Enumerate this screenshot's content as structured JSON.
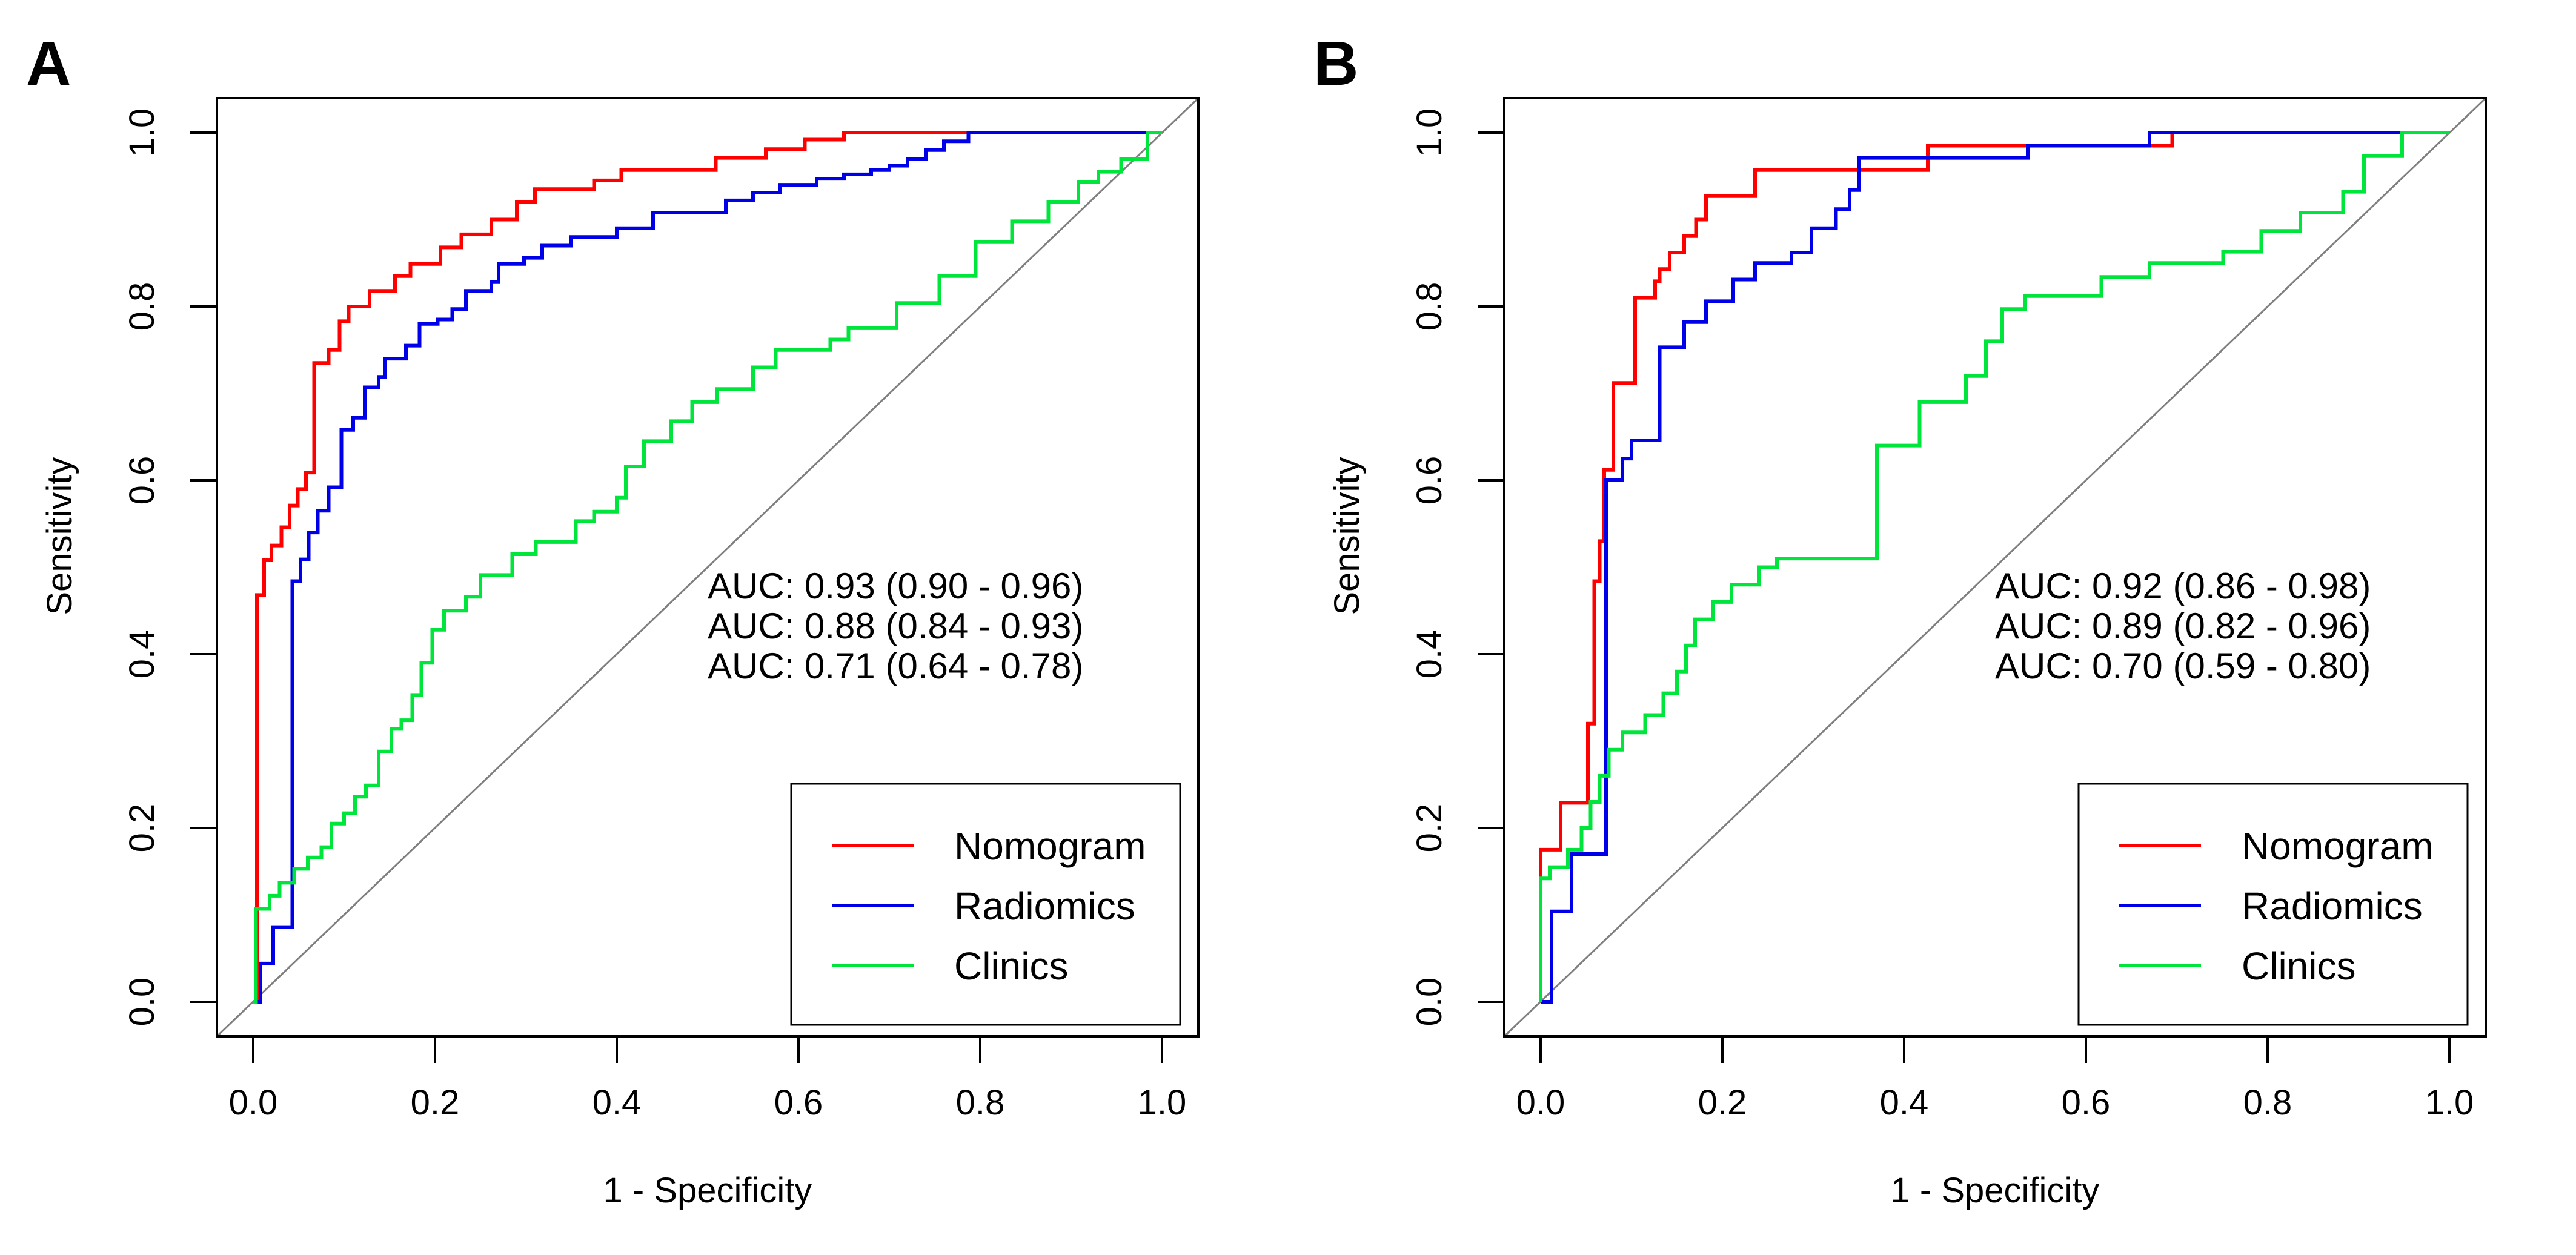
{
  "figure": {
    "background": "#ffffff",
    "axis_color": "#000000",
    "diagonal_color": "#7f7f7f"
  },
  "chart_data": [
    {
      "type": "line",
      "subtype": "roc-step-curves",
      "panel_label": "A",
      "xlabel": "1 - Specificity",
      "ylabel": "Sensitivity",
      "x_ticks": [
        "0.0",
        "0.2",
        "0.4",
        "0.6",
        "0.8",
        "1.0"
      ],
      "y_ticks": [
        "0.0",
        "0.2",
        "0.4",
        "0.6",
        "0.8",
        "1.0"
      ],
      "xlim": [
        0,
        1
      ],
      "ylim": [
        0,
        1
      ],
      "grid": false,
      "diagonal_reference_line": true,
      "legend_position": "bottom-right",
      "auc_annotations": [
        {
          "label": "AUC: 0.93 (0.90 - 0.96)",
          "series": "Nomogram",
          "auc": 0.93,
          "ci_low": 0.9,
          "ci_high": 0.96,
          "color": "#ff0000"
        },
        {
          "label": "AUC: 0.88 (0.84 - 0.93)",
          "series": "Radiomics",
          "auc": 0.88,
          "ci_low": 0.84,
          "ci_high": 0.93,
          "color": "#0000e8"
        },
        {
          "label": "AUC: 0.71 (0.64 - 0.78)",
          "series": "Clinics",
          "auc": 0.71,
          "ci_low": 0.64,
          "ci_high": 0.78,
          "color": "#00e53c"
        }
      ],
      "legend": [
        {
          "label": "Nomogram",
          "color": "#ff0000"
        },
        {
          "label": "Radiomics",
          "color": "#0000e8"
        },
        {
          "label": "Clinics",
          "color": "#00e53c"
        }
      ],
      "series": [
        {
          "name": "Nomogram",
          "color": "#ff0000",
          "points": [
            [
              0,
              0
            ],
            [
              0.004,
              0.468
            ],
            [
              0.012,
              0.508
            ],
            [
              0.02,
              0.525
            ],
            [
              0.031,
              0.546
            ],
            [
              0.04,
              0.571
            ],
            [
              0.049,
              0.59
            ],
            [
              0.058,
              0.609
            ],
            [
              0.067,
              0.735
            ],
            [
              0.083,
              0.75
            ],
            [
              0.095,
              0.783
            ],
            [
              0.105,
              0.8
            ],
            [
              0.128,
              0.818
            ],
            [
              0.156,
              0.835
            ],
            [
              0.173,
              0.849
            ],
            [
              0.206,
              0.868
            ],
            [
              0.229,
              0.883
            ],
            [
              0.262,
              0.9
            ],
            [
              0.29,
              0.92
            ],
            [
              0.31,
              0.935
            ],
            [
              0.375,
              0.945
            ],
            [
              0.405,
              0.957
            ],
            [
              0.509,
              0.971
            ],
            [
              0.564,
              0.981
            ],
            [
              0.607,
              0.992
            ],
            [
              0.65,
              1
            ],
            [
              1,
              1
            ]
          ]
        },
        {
          "name": "Radiomics",
          "color": "#0000e8",
          "points": [
            [
              0,
              0
            ],
            [
              0.008,
              0.044
            ],
            [
              0.022,
              0.086
            ],
            [
              0.043,
              0.484
            ],
            [
              0.052,
              0.509
            ],
            [
              0.061,
              0.54
            ],
            [
              0.071,
              0.565
            ],
            [
              0.083,
              0.592
            ],
            [
              0.097,
              0.658
            ],
            [
              0.11,
              0.672
            ],
            [
              0.123,
              0.707
            ],
            [
              0.138,
              0.719
            ],
            [
              0.145,
              0.74
            ],
            [
              0.168,
              0.755
            ],
            [
              0.183,
              0.78
            ],
            [
              0.203,
              0.785
            ],
            [
              0.219,
              0.797
            ],
            [
              0.234,
              0.818
            ],
            [
              0.262,
              0.828
            ],
            [
              0.27,
              0.849
            ],
            [
              0.298,
              0.856
            ],
            [
              0.318,
              0.87
            ],
            [
              0.35,
              0.88
            ],
            [
              0.4,
              0.89
            ],
            [
              0.44,
              0.908
            ],
            [
              0.52,
              0.922
            ],
            [
              0.55,
              0.931
            ],
            [
              0.58,
              0.94
            ],
            [
              0.62,
              0.947
            ],
            [
              0.65,
              0.952
            ],
            [
              0.68,
              0.957
            ],
            [
              0.7,
              0.962
            ],
            [
              0.72,
              0.97
            ],
            [
              0.74,
              0.98
            ],
            [
              0.76,
              0.99
            ],
            [
              0.787,
              1
            ],
            [
              1,
              1
            ]
          ]
        },
        {
          "name": "Clinics",
          "color": "#00e53c",
          "points": [
            [
              0,
              0
            ],
            [
              0.003,
              0.107
            ],
            [
              0.018,
              0.122
            ],
            [
              0.029,
              0.137
            ],
            [
              0.045,
              0.153
            ],
            [
              0.06,
              0.166
            ],
            [
              0.075,
              0.178
            ],
            [
              0.086,
              0.205
            ],
            [
              0.1,
              0.217
            ],
            [
              0.112,
              0.236
            ],
            [
              0.124,
              0.249
            ],
            [
              0.138,
              0.288
            ],
            [
              0.152,
              0.314
            ],
            [
              0.163,
              0.324
            ],
            [
              0.175,
              0.353
            ],
            [
              0.185,
              0.39
            ],
            [
              0.197,
              0.428
            ],
            [
              0.21,
              0.45
            ],
            [
              0.234,
              0.466
            ],
            [
              0.25,
              0.491
            ],
            [
              0.285,
              0.515
            ],
            [
              0.311,
              0.529
            ],
            [
              0.355,
              0.553
            ],
            [
              0.375,
              0.564
            ],
            [
              0.4,
              0.58
            ],
            [
              0.41,
              0.616
            ],
            [
              0.43,
              0.645
            ],
            [
              0.46,
              0.668
            ],
            [
              0.483,
              0.69
            ],
            [
              0.51,
              0.705
            ],
            [
              0.55,
              0.73
            ],
            [
              0.575,
              0.75
            ],
            [
              0.635,
              0.762
            ],
            [
              0.655,
              0.775
            ],
            [
              0.708,
              0.804
            ],
            [
              0.755,
              0.835
            ],
            [
              0.795,
              0.874
            ],
            [
              0.835,
              0.898
            ],
            [
              0.875,
              0.92
            ],
            [
              0.908,
              0.943
            ],
            [
              0.93,
              0.955
            ],
            [
              0.955,
              0.97
            ],
            [
              0.984,
              1
            ],
            [
              1,
              1
            ]
          ]
        }
      ]
    },
    {
      "type": "line",
      "subtype": "roc-step-curves",
      "panel_label": "B",
      "xlabel": "1 - Specificity",
      "ylabel": "Sensitivity",
      "x_ticks": [
        "0.0",
        "0.2",
        "0.4",
        "0.6",
        "0.8",
        "1.0"
      ],
      "y_ticks": [
        "0.0",
        "0.2",
        "0.4",
        "0.6",
        "0.8",
        "1.0"
      ],
      "xlim": [
        0,
        1
      ],
      "ylim": [
        0,
        1
      ],
      "grid": false,
      "diagonal_reference_line": true,
      "legend_position": "bottom-right",
      "auc_annotations": [
        {
          "label": "AUC: 0.92 (0.86 - 0.98)",
          "series": "Nomogram",
          "auc": 0.92,
          "ci_low": 0.86,
          "ci_high": 0.98,
          "color": "#ff0000"
        },
        {
          "label": "AUC: 0.89 (0.82 - 0.96)",
          "series": "Radiomics",
          "auc": 0.89,
          "ci_low": 0.82,
          "ci_high": 0.96,
          "color": "#0000e8"
        },
        {
          "label": "AUC: 0.70 (0.59 - 0.80)",
          "series": "Clinics",
          "auc": 0.7,
          "ci_low": 0.59,
          "ci_high": 0.8,
          "color": "#00e53c"
        }
      ],
      "legend": [
        {
          "label": "Nomogram",
          "color": "#ff0000"
        },
        {
          "label": "Radiomics",
          "color": "#0000e8"
        },
        {
          "label": "Clinics",
          "color": "#00e53c"
        }
      ],
      "series": [
        {
          "name": "Nomogram",
          "color": "#ff0000",
          "points": [
            [
              0,
              0
            ],
            [
              0,
              0.175
            ],
            [
              0.022,
              0.229
            ],
            [
              0.052,
              0.32
            ],
            [
              0.059,
              0.484
            ],
            [
              0.065,
              0.53
            ],
            [
              0.07,
              0.612
            ],
            [
              0.08,
              0.712
            ],
            [
              0.104,
              0.81
            ],
            [
              0.126,
              0.829
            ],
            [
              0.131,
              0.843
            ],
            [
              0.142,
              0.862
            ],
            [
              0.158,
              0.881
            ],
            [
              0.171,
              0.9
            ],
            [
              0.182,
              0.927
            ],
            [
              0.236,
              0.957
            ],
            [
              0.426,
              0.985
            ],
            [
              0.695,
              1
            ],
            [
              1,
              1
            ]
          ]
        },
        {
          "name": "Radiomics",
          "color": "#0000e8",
          "points": [
            [
              0,
              0
            ],
            [
              0.012,
              0.104
            ],
            [
              0.034,
              0.17
            ],
            [
              0.072,
              0.6
            ],
            [
              0.09,
              0.625
            ],
            [
              0.1,
              0.646
            ],
            [
              0.131,
              0.753
            ],
            [
              0.158,
              0.782
            ],
            [
              0.182,
              0.806
            ],
            [
              0.212,
              0.831
            ],
            [
              0.236,
              0.85
            ],
            [
              0.276,
              0.862
            ],
            [
              0.298,
              0.89
            ],
            [
              0.325,
              0.912
            ],
            [
              0.34,
              0.934
            ],
            [
              0.35,
              0.971
            ],
            [
              0.536,
              0.985
            ],
            [
              0.67,
              1
            ],
            [
              1,
              1
            ]
          ]
        },
        {
          "name": "Clinics",
          "color": "#00e53c",
          "points": [
            [
              0,
              0
            ],
            [
              0,
              0.142
            ],
            [
              0.01,
              0.155
            ],
            [
              0.03,
              0.175
            ],
            [
              0.045,
              0.2
            ],
            [
              0.055,
              0.23
            ],
            [
              0.065,
              0.26
            ],
            [
              0.075,
              0.29
            ],
            [
              0.09,
              0.31
            ],
            [
              0.115,
              0.33
            ],
            [
              0.135,
              0.355
            ],
            [
              0.15,
              0.38
            ],
            [
              0.16,
              0.41
            ],
            [
              0.17,
              0.44
            ],
            [
              0.19,
              0.46
            ],
            [
              0.21,
              0.48
            ],
            [
              0.24,
              0.5
            ],
            [
              0.26,
              0.51
            ],
            [
              0.37,
              0.64
            ],
            [
              0.417,
              0.69
            ],
            [
              0.468,
              0.72
            ],
            [
              0.49,
              0.76
            ],
            [
              0.508,
              0.797
            ],
            [
              0.533,
              0.812
            ],
            [
              0.617,
              0.834
            ],
            [
              0.67,
              0.85
            ],
            [
              0.751,
              0.863
            ],
            [
              0.793,
              0.887
            ],
            [
              0.836,
              0.908
            ],
            [
              0.883,
              0.932
            ],
            [
              0.906,
              0.973
            ],
            [
              0.948,
              1
            ],
            [
              1,
              1
            ]
          ]
        }
      ]
    }
  ]
}
